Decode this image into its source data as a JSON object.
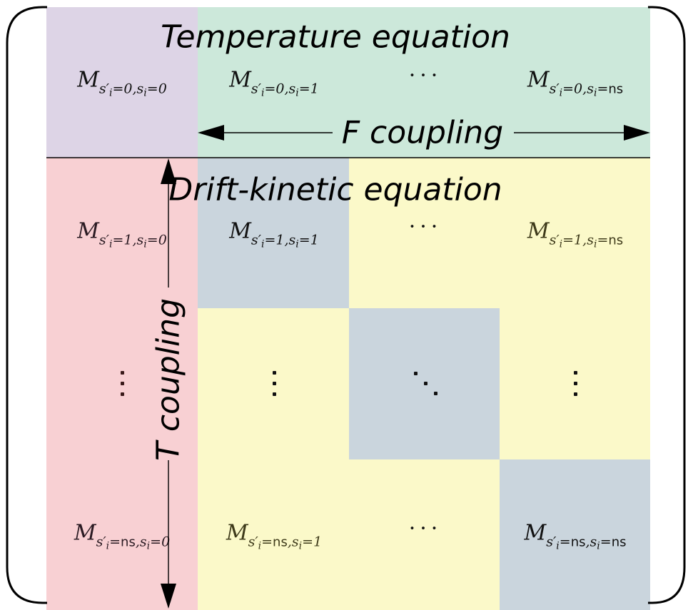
{
  "titles": {
    "temperature": "Temperature equation",
    "drift_kinetic": "Drift-kinetic equation",
    "f_coupling": "F coupling",
    "t_coupling": "T coupling"
  },
  "symbols": {
    "M": "M",
    "s_prime": "s′",
    "i": "i",
    "s": "s",
    "comma": ",",
    "equals": "=",
    "index_0": "0",
    "index_1": "1",
    "index_ns": "ns",
    "h_ellipsis": "···"
  },
  "colors": {
    "temperature_block": "#ddd4e6",
    "temperature_row": "#cce8da",
    "t_coupling_column": "#f8d0d3",
    "diagonal_block": "#cad5dd",
    "drift_kinetic_block": "#fbf9c9"
  }
}
